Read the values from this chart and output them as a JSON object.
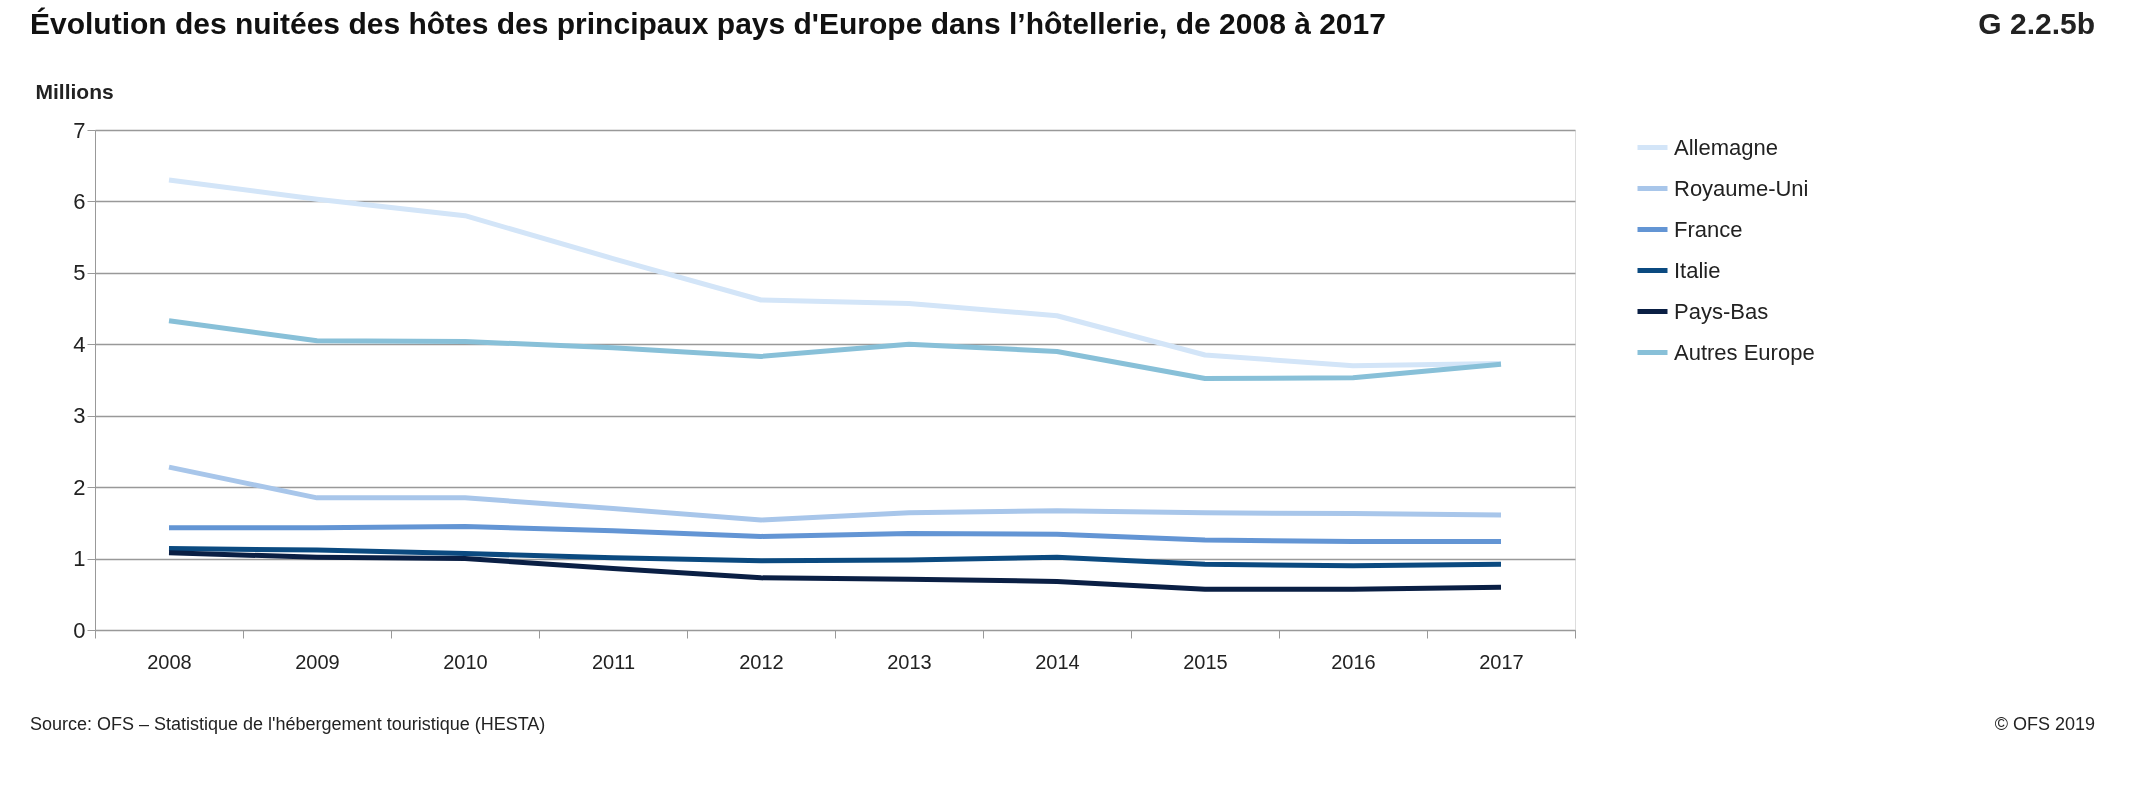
{
  "chart_data": {
    "type": "line",
    "title": "Évolution des nuitées des hôtes des principaux pays d'Europe dans l’hôtellerie, de 2008 à 2017",
    "ylabel": "Millions",
    "categories": [
      "2008",
      "2009",
      "2010",
      "2011",
      "2012",
      "2013",
      "2014",
      "2015",
      "2016",
      "2017"
    ],
    "series": [
      {
        "name": "Allemagne",
        "color": "#d3e5f8",
        "values": [
          6.3,
          6.03,
          5.8,
          5.2,
          4.62,
          4.57,
          4.4,
          3.85,
          3.7,
          3.73
        ]
      },
      {
        "name": "Royaume-Uni",
        "color": "#a8c6ea",
        "values": [
          2.28,
          1.85,
          1.85,
          1.7,
          1.54,
          1.64,
          1.67,
          1.64,
          1.63,
          1.61
        ]
      },
      {
        "name": "France",
        "color": "#6395d4",
        "values": [
          1.43,
          1.43,
          1.45,
          1.39,
          1.31,
          1.35,
          1.34,
          1.26,
          1.24,
          1.24
        ]
      },
      {
        "name": "Italie",
        "color": "#0b4a80",
        "values": [
          1.14,
          1.12,
          1.07,
          1.01,
          0.97,
          0.98,
          1.02,
          0.92,
          0.9,
          0.92
        ]
      },
      {
        "name": "Pays-Bas",
        "color": "#0a1f44",
        "values": [
          1.08,
          1.02,
          1.0,
          0.86,
          0.73,
          0.71,
          0.68,
          0.57,
          0.57,
          0.6
        ]
      },
      {
        "name": "Autres Europe",
        "color": "#88c0d8",
        "values": [
          4.33,
          4.05,
          4.04,
          3.95,
          3.83,
          4.0,
          3.9,
          3.52,
          3.53,
          3.72
        ]
      }
    ],
    "ylim": [
      0,
      7
    ],
    "yticks": [
      0,
      1,
      2,
      3,
      4,
      5,
      6,
      7
    ],
    "grid": "y",
    "legend": "top right",
    "marker": "none",
    "line_style": "solid",
    "annotations": [
      "G 2.2.5b",
      "Source: OFS – Statistique de l'hébergement touristique (HESTA)",
      "© OFS 2019"
    ]
  }
}
